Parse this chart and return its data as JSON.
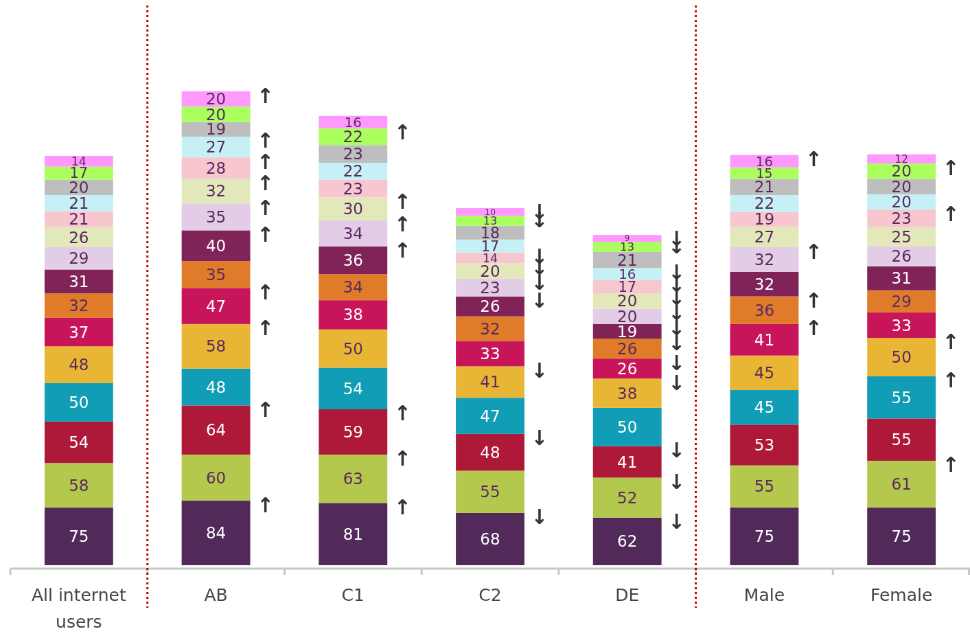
{
  "chart_data": {
    "type": "bar",
    "stacked": true,
    "data_labels": true,
    "categories": [
      "All internet users",
      "AB",
      "C1",
      "C2",
      "DE",
      "Male",
      "Female"
    ],
    "series": [
      {
        "color": "#512a59",
        "values": [
          75,
          84,
          81,
          68,
          62,
          75,
          75
        ]
      },
      {
        "color": "#b5c84e",
        "values": [
          58,
          60,
          63,
          55,
          52,
          55,
          61
        ]
      },
      {
        "color": "#ae1839",
        "values": [
          54,
          64,
          59,
          48,
          41,
          53,
          55
        ]
      },
      {
        "color": "#109db5",
        "values": [
          50,
          48,
          54,
          47,
          50,
          45,
          55
        ]
      },
      {
        "color": "#e8b535",
        "values": [
          48,
          58,
          50,
          41,
          38,
          45,
          50
        ]
      },
      {
        "color": "#c8155a",
        "values": [
          37,
          47,
          38,
          33,
          26,
          41,
          33
        ]
      },
      {
        "color": "#e07b29",
        "values": [
          32,
          35,
          34,
          32,
          26,
          36,
          29
        ]
      },
      {
        "color": "#7f2358",
        "values": [
          31,
          40,
          36,
          26,
          19,
          32,
          31
        ]
      },
      {
        "color": "#e3cce5",
        "values": [
          29,
          35,
          34,
          23,
          20,
          32,
          26
        ]
      },
      {
        "color": "#e2e8b9",
        "values": [
          26,
          32,
          30,
          20,
          20,
          27,
          25
        ]
      },
      {
        "color": "#f7c6cf",
        "values": [
          21,
          28,
          23,
          14,
          17,
          19,
          23
        ]
      },
      {
        "color": "#c5f0f5",
        "values": [
          21,
          27,
          22,
          17,
          16,
          22,
          20
        ]
      },
      {
        "color": "#bebebe",
        "values": [
          20,
          19,
          23,
          18,
          21,
          21,
          20
        ]
      },
      {
        "color": "#aaff5e",
        "values": [
          17,
          20,
          22,
          13,
          13,
          15,
          20
        ]
      },
      {
        "color": "#ff99ff",
        "values": [
          14,
          20,
          16,
          10,
          9,
          16,
          12
        ]
      }
    ],
    "annotations": [
      {
        "text": "↑",
        "x": "AB",
        "y": 84
      },
      {
        "text": "↑",
        "x": "AB",
        "y": 208
      },
      {
        "text": "↑",
        "x": "AB",
        "y": 314
      },
      {
        "text": "↑",
        "x": "AB",
        "y": 361
      },
      {
        "text": "↑",
        "x": "AB",
        "y": 436
      },
      {
        "text": "↑",
        "x": "AB",
        "y": 471
      },
      {
        "text": "↑",
        "x": "AB",
        "y": 503
      },
      {
        "text": "↑",
        "x": "AB",
        "y": 531
      },
      {
        "text": "↑",
        "x": "AB",
        "y": 558
      },
      {
        "text": "↑",
        "x": "AB",
        "y": 617
      },
      {
        "text": "↑",
        "x": "C1",
        "y": 81
      },
      {
        "text": "↑",
        "x": "C1",
        "y": 144
      },
      {
        "text": "↑",
        "x": "C1",
        "y": 203
      },
      {
        "text": "↑",
        "x": "C1",
        "y": 415
      },
      {
        "text": "↑",
        "x": "C1",
        "y": 449
      },
      {
        "text": "↑",
        "x": "C1",
        "y": 479
      },
      {
        "text": "↑",
        "x": "C1",
        "y": 569
      },
      {
        "text": "↓",
        "x": "C2",
        "y": 68
      },
      {
        "text": "↓",
        "x": "C2",
        "y": 171
      },
      {
        "text": "↓",
        "x": "C2",
        "y": 259
      },
      {
        "text": "↓",
        "x": "C2",
        "y": 350
      },
      {
        "text": "↓",
        "x": "C2",
        "y": 373
      },
      {
        "text": "↓",
        "x": "C2",
        "y": 393
      },
      {
        "text": "↓",
        "x": "C2",
        "y": 407
      },
      {
        "text": "↓",
        "x": "C2",
        "y": 455
      },
      {
        "text": "↓",
        "x": "C2",
        "y": 465
      },
      {
        "text": "↓",
        "x": "DE",
        "y": 62
      },
      {
        "text": "↓",
        "x": "DE",
        "y": 114
      },
      {
        "text": "↓",
        "x": "DE",
        "y": 155
      },
      {
        "text": "↓",
        "x": "DE",
        "y": 243
      },
      {
        "text": "↓",
        "x": "DE",
        "y": 269
      },
      {
        "text": "↓",
        "x": "DE",
        "y": 295
      },
      {
        "text": "↓",
        "x": "DE",
        "y": 314
      },
      {
        "text": "↓",
        "x": "DE",
        "y": 334
      },
      {
        "text": "↓",
        "x": "DE",
        "y": 354
      },
      {
        "text": "↓",
        "x": "DE",
        "y": 371
      },
      {
        "text": "↓",
        "x": "DE",
        "y": 387
      },
      {
        "text": "↓",
        "x": "DE",
        "y": 421
      },
      {
        "text": "↓",
        "x": "DE",
        "y": 430
      },
      {
        "text": "↑",
        "x": "Male",
        "y": 314
      },
      {
        "text": "↑",
        "x": "Male",
        "y": 350
      },
      {
        "text": "↑",
        "x": "Male",
        "y": 414
      },
      {
        "text": "↑",
        "x": "Male",
        "y": 534
      },
      {
        "text": "↑",
        "x": "Female",
        "y": 136
      },
      {
        "text": "↑",
        "x": "Female",
        "y": 246
      },
      {
        "text": "↑",
        "x": "Female",
        "y": 296
      },
      {
        "text": "↑",
        "x": "Female",
        "y": 463
      },
      {
        "text": "↑",
        "x": "Female",
        "y": 523
      }
    ]
  }
}
